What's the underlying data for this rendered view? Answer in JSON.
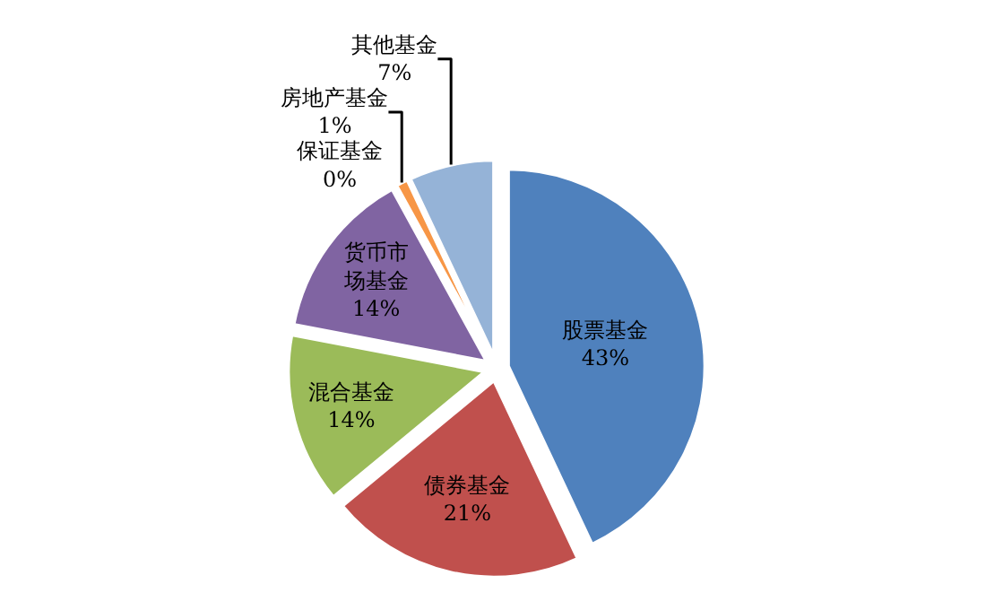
{
  "chart_data": {
    "type": "pie",
    "categories": [
      "股票基金",
      "债券基金",
      "混合基金",
      "货币市场基金",
      "保证基金",
      "房地产基金",
      "其他基金"
    ],
    "values": [
      43,
      21,
      14,
      14,
      0,
      1,
      7
    ],
    "value_labels": [
      "43%",
      "21%",
      "14%",
      "14%",
      "0%",
      "1%",
      "7%"
    ],
    "colors": [
      "#4f81bd",
      "#c0504d",
      "#9bbb59",
      "#8064a2",
      "#4bacc6",
      "#f79646",
      "#95b3d7"
    ]
  }
}
